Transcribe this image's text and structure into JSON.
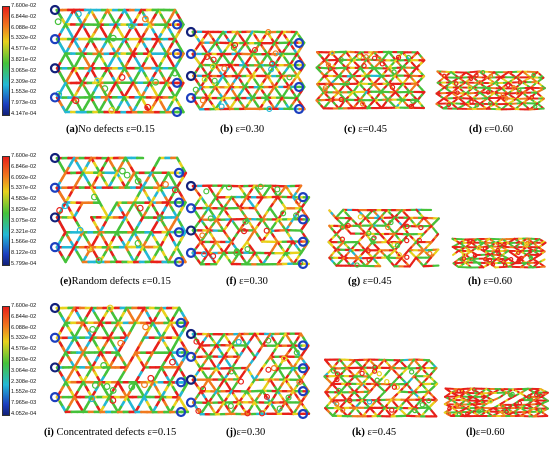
{
  "colors": {
    "red": "#e8201a",
    "orange": "#f07a1e",
    "yellow": "#e8d21c",
    "green": "#45c23a",
    "cyan": "#22b8d6",
    "blue": "#1c3fbf",
    "darkblue": "#12207a"
  },
  "legends": [
    {
      "ticks": [
        "7.600e-02",
        "6.844e-02",
        "6.088e-02",
        "5.332e-02",
        "4.577e-02",
        "3.821e-02",
        "3.065e-02",
        "2.309e-02",
        "1.553e-02",
        "7.973e-03",
        "4.147e-04"
      ]
    },
    {
      "ticks": [
        "7.600e-02",
        "6.846e-02",
        "6.092e-02",
        "5.337e-02",
        "4.583e-02",
        "3.829e-02",
        "3.075e-02",
        "2.321e-02",
        "1.566e-02",
        "8.122e-03",
        "5.799e-04"
      ]
    },
    {
      "ticks": [
        "7.600e-02",
        "6.844e-02",
        "6.088e-02",
        "5.332e-02",
        "4.576e-02",
        "3.820e-02",
        "3.064e-02",
        "2.308e-02",
        "1.552e-02",
        "7.965e-03",
        "4.052e-04"
      ]
    }
  ],
  "panels": [
    {
      "id": "a",
      "label": "(a)",
      "text": "No defects  ε=0.15",
      "strain": 0.15,
      "defects": "none"
    },
    {
      "id": "b",
      "label": "(b)",
      "text": " ε=0.30",
      "strain": 0.3,
      "defects": "none"
    },
    {
      "id": "c",
      "label": "(c)",
      "text": " ε=0.45",
      "strain": 0.45,
      "defects": "none"
    },
    {
      "id": "d",
      "label": "(d)",
      "text": " ε=0.60",
      "strain": 0.6,
      "defects": "none"
    },
    {
      "id": "e",
      "label": "(e)",
      "text": "Random defects ε=0.15",
      "strain": 0.15,
      "defects": "random"
    },
    {
      "id": "f",
      "label": "(f)",
      "text": " ε=0.30",
      "strain": 0.3,
      "defects": "random"
    },
    {
      "id": "g",
      "label": "(g)",
      "text": " ε=0.45",
      "strain": 0.45,
      "defects": "random"
    },
    {
      "id": "h",
      "label": "(h)",
      "text": " ε=0.60",
      "strain": 0.6,
      "defects": "random"
    },
    {
      "id": "i",
      "label": "(i)",
      "text": " Concentrated defects ε=0.15",
      "strain": 0.15,
      "defects": "concentrated"
    },
    {
      "id": "j",
      "label": "(j)",
      "text": "ε=0.30",
      "strain": 0.3,
      "defects": "concentrated"
    },
    {
      "id": "k",
      "label": "(k)",
      "text": " ε=0.45",
      "strain": 0.45,
      "defects": "concentrated"
    },
    {
      "id": "l",
      "label": "(l)",
      "text": "ε=0.60",
      "strain": 0.6,
      "defects": "concentrated"
    }
  ]
}
